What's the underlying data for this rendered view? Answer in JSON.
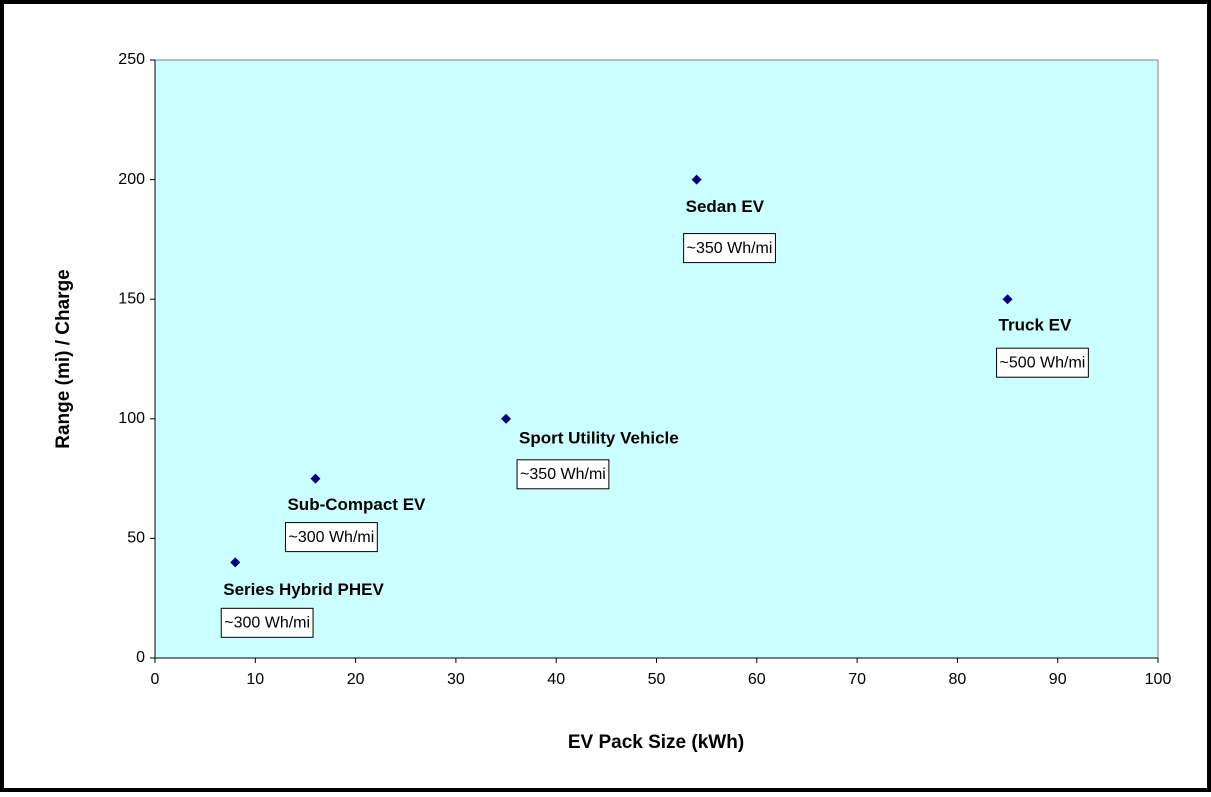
{
  "chart_data": {
    "type": "scatter",
    "x_label": "EV Pack Size (kWh)",
    "y_label": "Range (mi) / Charge",
    "x": [
      8,
      16,
      35,
      54,
      85
    ],
    "series": [
      {
        "color": "#000080",
        "values": [
          40,
          75,
          100,
          200,
          150
        ]
      }
    ],
    "point_labels": [
      "Series Hybrid PHEV",
      "Sub-Compact EV",
      "Sport Utility Vehicle",
      "Sedan EV",
      "Truck EV"
    ],
    "point_notes": [
      "~300 Wh/mi",
      "~300 Wh/mi",
      "~350 Wh/mi",
      "~350 Wh/mi",
      "~500 Wh/mi"
    ],
    "xlim": [
      0,
      100
    ],
    "xticks": [
      0,
      10,
      20,
      30,
      40,
      50,
      60,
      70,
      80,
      90,
      100
    ],
    "ylim": [
      0,
      250
    ],
    "yticks": [
      0,
      50,
      100,
      150,
      200,
      250
    ],
    "plot_background": "#ccffff",
    "grid": false
  }
}
